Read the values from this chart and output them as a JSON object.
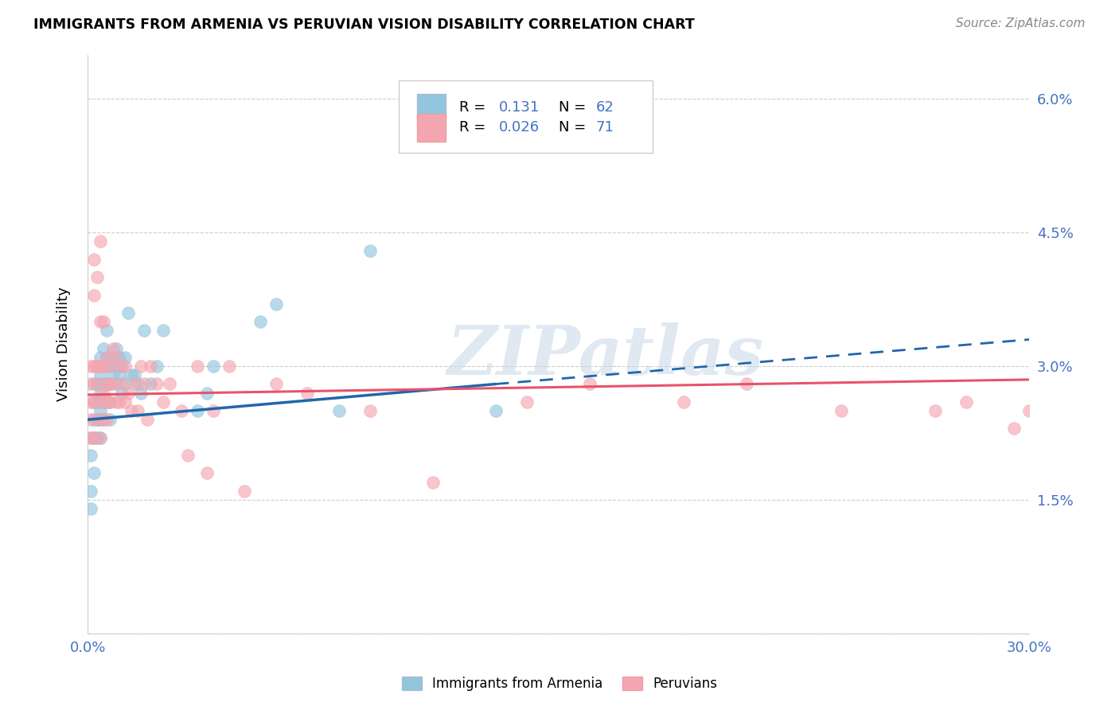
{
  "title": "IMMIGRANTS FROM ARMENIA VS PERUVIAN VISION DISABILITY CORRELATION CHART",
  "source": "Source: ZipAtlas.com",
  "ylabel": "Vision Disability",
  "xlim": [
    0.0,
    0.3
  ],
  "ylim": [
    0.0,
    0.065
  ],
  "yticks": [
    0.0,
    0.015,
    0.03,
    0.045,
    0.06
  ],
  "ytick_labels": [
    "",
    "1.5%",
    "3.0%",
    "4.5%",
    "6.0%"
  ],
  "xticks": [
    0.0,
    0.05,
    0.1,
    0.15,
    0.2,
    0.25,
    0.3
  ],
  "xtick_labels": [
    "0.0%",
    "",
    "",
    "",
    "",
    "",
    "30.0%"
  ],
  "blue_color": "#92c5de",
  "pink_color": "#f4a6b0",
  "trend_blue": "#2166ac",
  "trend_pink": "#e8536a",
  "axis_color": "#4472c4",
  "watermark": "ZIPatlas",
  "blue_scatter_x": [
    0.001,
    0.001,
    0.001,
    0.001,
    0.002,
    0.002,
    0.002,
    0.002,
    0.002,
    0.003,
    0.003,
    0.003,
    0.003,
    0.003,
    0.004,
    0.004,
    0.004,
    0.004,
    0.004,
    0.004,
    0.005,
    0.005,
    0.005,
    0.005,
    0.005,
    0.006,
    0.006,
    0.006,
    0.006,
    0.006,
    0.007,
    0.007,
    0.007,
    0.007,
    0.008,
    0.008,
    0.009,
    0.009,
    0.009,
    0.01,
    0.01,
    0.011,
    0.011,
    0.012,
    0.012,
    0.013,
    0.014,
    0.015,
    0.016,
    0.017,
    0.018,
    0.02,
    0.022,
    0.024,
    0.035,
    0.038,
    0.04,
    0.055,
    0.06,
    0.08,
    0.09,
    0.13
  ],
  "blue_scatter_y": [
    0.022,
    0.02,
    0.016,
    0.014,
    0.028,
    0.026,
    0.024,
    0.022,
    0.018,
    0.03,
    0.028,
    0.026,
    0.024,
    0.022,
    0.031,
    0.029,
    0.027,
    0.025,
    0.024,
    0.022,
    0.032,
    0.03,
    0.028,
    0.026,
    0.024,
    0.031,
    0.03,
    0.028,
    0.026,
    0.034,
    0.03,
    0.028,
    0.026,
    0.024,
    0.031,
    0.029,
    0.032,
    0.03,
    0.028,
    0.031,
    0.029,
    0.03,
    0.027,
    0.031,
    0.028,
    0.036,
    0.029,
    0.029,
    0.028,
    0.027,
    0.034,
    0.028,
    0.03,
    0.034,
    0.025,
    0.027,
    0.03,
    0.035,
    0.037,
    0.025,
    0.043,
    0.025
  ],
  "pink_scatter_x": [
    0.001,
    0.001,
    0.001,
    0.001,
    0.001,
    0.002,
    0.002,
    0.002,
    0.002,
    0.002,
    0.003,
    0.003,
    0.003,
    0.003,
    0.004,
    0.004,
    0.004,
    0.004,
    0.004,
    0.005,
    0.005,
    0.005,
    0.005,
    0.006,
    0.006,
    0.006,
    0.006,
    0.007,
    0.007,
    0.007,
    0.008,
    0.008,
    0.009,
    0.009,
    0.01,
    0.01,
    0.011,
    0.012,
    0.012,
    0.013,
    0.014,
    0.015,
    0.016,
    0.017,
    0.018,
    0.019,
    0.02,
    0.022,
    0.024,
    0.026,
    0.03,
    0.032,
    0.035,
    0.038,
    0.04,
    0.045,
    0.05,
    0.06,
    0.07,
    0.09,
    0.11,
    0.14,
    0.16,
    0.19,
    0.21,
    0.24,
    0.27,
    0.28,
    0.295,
    0.3
  ],
  "pink_scatter_y": [
    0.03,
    0.028,
    0.026,
    0.024,
    0.022,
    0.042,
    0.038,
    0.03,
    0.026,
    0.022,
    0.04,
    0.03,
    0.028,
    0.024,
    0.044,
    0.035,
    0.03,
    0.026,
    0.022,
    0.035,
    0.03,
    0.027,
    0.024,
    0.031,
    0.028,
    0.026,
    0.024,
    0.03,
    0.028,
    0.026,
    0.032,
    0.028,
    0.031,
    0.026,
    0.03,
    0.026,
    0.028,
    0.03,
    0.026,
    0.027,
    0.025,
    0.028,
    0.025,
    0.03,
    0.028,
    0.024,
    0.03,
    0.028,
    0.026,
    0.028,
    0.025,
    0.02,
    0.03,
    0.018,
    0.025,
    0.03,
    0.016,
    0.028,
    0.027,
    0.025,
    0.017,
    0.026,
    0.028,
    0.026,
    0.028,
    0.025,
    0.025,
    0.026,
    0.023,
    0.025
  ],
  "blue_trend_x0": 0.0,
  "blue_trend_x1": 0.13,
  "blue_trend_xdash0": 0.13,
  "blue_trend_xdash1": 0.3,
  "blue_trend_y_at_0": 0.024,
  "blue_trend_y_at_013": 0.028,
  "blue_trend_y_at_030": 0.033,
  "pink_trend_y_at_0": 0.0268,
  "pink_trend_y_at_030": 0.0285
}
